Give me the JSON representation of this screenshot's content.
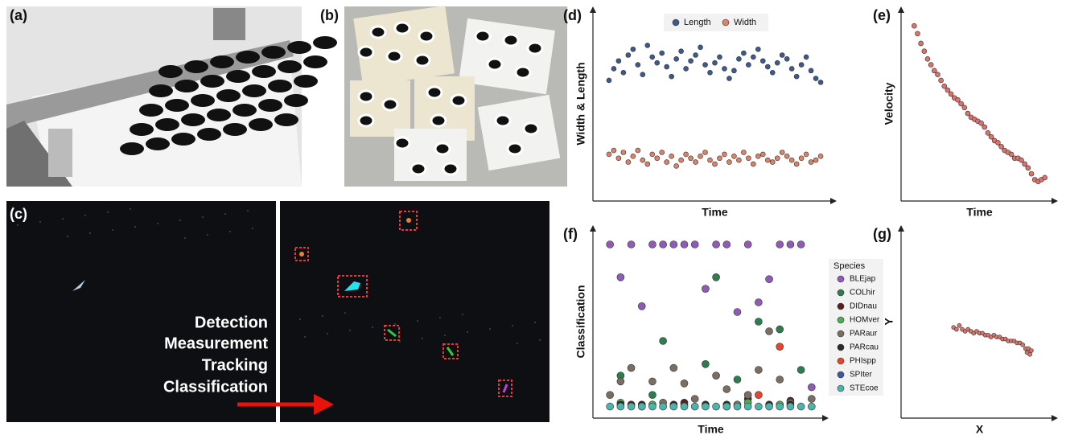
{
  "panel_labels": [
    "(a)",
    "(b)",
    "(c)",
    "(d)",
    "(e)",
    "(f)",
    "(g)"
  ],
  "steps": [
    "Detection",
    "Measurement",
    "Tracking",
    "Classification"
  ],
  "chart_data": [
    {
      "type": "scatter",
      "xlabel": "Time",
      "ylabel": "Width & Length",
      "legend": "top",
      "x": [
        0,
        1,
        2,
        3,
        4,
        5,
        6,
        7,
        8,
        9,
        10,
        11,
        12,
        13,
        14,
        15,
        16,
        17,
        18,
        19,
        20,
        21,
        22,
        23,
        24,
        25,
        26,
        27,
        28,
        29,
        30,
        31,
        32,
        33,
        34,
        35,
        36,
        37,
        38,
        39,
        40,
        41,
        42,
        43,
        44
      ],
      "xlim": [
        -2,
        46
      ],
      "ylim": [
        0,
        100
      ],
      "series": [
        {
          "name": "Length",
          "color": "#3d5a8a",
          "values": [
            62,
            68,
            72,
            66,
            75,
            78,
            70,
            65,
            80,
            74,
            71,
            76,
            69,
            64,
            73,
            77,
            68,
            72,
            75,
            79,
            70,
            66,
            71,
            74,
            68,
            63,
            67,
            73,
            76,
            70,
            74,
            78,
            72,
            69,
            66,
            71,
            75,
            73,
            68,
            64,
            70,
            74,
            67,
            63,
            61
          ]
        },
        {
          "name": "Width",
          "color": "#d9836b",
          "values": [
            24,
            26,
            22,
            25,
            20,
            23,
            26,
            21,
            19,
            24,
            22,
            25,
            20,
            23,
            18,
            21,
            24,
            22,
            20,
            23,
            25,
            21,
            19,
            22,
            24,
            20,
            23,
            21,
            25,
            22,
            19,
            23,
            24,
            21,
            20,
            22,
            25,
            23,
            21,
            19,
            22,
            24,
            20,
            21,
            23
          ]
        }
      ]
    },
    {
      "type": "scatter",
      "xlabel": "Time",
      "ylabel": "Velocity",
      "color": "#d9736b",
      "x": [
        0,
        1,
        2,
        3,
        4,
        5,
        6,
        7,
        8,
        9,
        10,
        11,
        12,
        13,
        14,
        15,
        16,
        17,
        18,
        19,
        20,
        21,
        22,
        23,
        24,
        25,
        26,
        27,
        28,
        29,
        30,
        31,
        32,
        33,
        34,
        35,
        36,
        37,
        38,
        39
      ],
      "xlim": [
        -2,
        41
      ],
      "ylim": [
        0,
        100
      ],
      "values": [
        90,
        86,
        81,
        77,
        73,
        70,
        67,
        65,
        62,
        59,
        57,
        55,
        53,
        52,
        50,
        48,
        45,
        43,
        42,
        41,
        40,
        38,
        35,
        33,
        31,
        30,
        28,
        26,
        25,
        24,
        22,
        22,
        21,
        19,
        17,
        14,
        11,
        10,
        11,
        12
      ]
    },
    {
      "type": "scatter",
      "xlabel": "Time",
      "ylabel": "Classification",
      "legend": "right",
      "legend_title": "Species",
      "x": [
        0,
        1,
        2,
        3,
        4,
        5,
        6,
        7,
        8,
        9,
        10,
        11,
        12,
        13,
        14,
        15,
        16,
        17,
        18,
        19
      ],
      "xlim": [
        -1,
        20
      ],
      "ylim": [
        0,
        1
      ],
      "series": [
        {
          "name": "BLEjap",
          "color": "#8e5bb5",
          "values": [
            0.9,
            0.73,
            0.9,
            0.58,
            0.9,
            0.9,
            0.9,
            0.9,
            0.9,
            0.67,
            0.9,
            0.9,
            0.55,
            0.9,
            0.6,
            0.72,
            0.9,
            0.9,
            0.9,
            0.16
          ]
        },
        {
          "name": "COLhir",
          "color": "#2e7d4f",
          "values": [
            null,
            0.22,
            null,
            null,
            0.12,
            0.4,
            null,
            0.07,
            null,
            0.28,
            0.73,
            null,
            0.2,
            null,
            0.5,
            null,
            0.46,
            null,
            0.25,
            null
          ]
        },
        {
          "name": "DIDnau",
          "color": "#5c1f1f",
          "values": [
            null,
            null,
            0.07,
            null,
            null,
            null,
            null,
            0.08,
            null,
            null,
            null,
            null,
            null,
            0.1,
            null,
            null,
            null,
            0.09,
            null,
            null
          ]
        },
        {
          "name": "HOMver",
          "color": "#4caf50",
          "values": [
            null,
            0.08,
            null,
            null,
            0.07,
            null,
            null,
            null,
            null,
            null,
            null,
            null,
            null,
            0.08,
            null,
            null,
            0.07,
            null,
            null,
            null
          ]
        },
        {
          "name": "PARaur",
          "color": "#7a6e63",
          "values": [
            0.12,
            0.19,
            0.26,
            null,
            0.19,
            0.08,
            0.26,
            0.18,
            0.1,
            null,
            0.22,
            0.15,
            0.07,
            0.12,
            0.25,
            0.45,
            0.2,
            0.08,
            null,
            0.1
          ]
        },
        {
          "name": "PARcau",
          "color": "#2a2a2a",
          "values": [
            null,
            0.07,
            null,
            0.07,
            null,
            null,
            0.07,
            null,
            null,
            0.07,
            null,
            0.07,
            null,
            null,
            null,
            0.07,
            null,
            0.07,
            null,
            null
          ]
        },
        {
          "name": "PHIspp",
          "color": "#e8452b",
          "values": [
            null,
            null,
            null,
            null,
            null,
            null,
            null,
            null,
            null,
            null,
            null,
            null,
            null,
            null,
            0.12,
            null,
            0.37,
            null,
            null,
            null
          ]
        },
        {
          "name": "SPIter",
          "color": "#3a5ba0",
          "values": [
            null,
            null,
            null,
            0.06,
            null,
            null,
            null,
            null,
            null,
            null,
            null,
            0.06,
            null,
            null,
            null,
            null,
            null,
            null,
            null,
            null
          ]
        },
        {
          "name": "STEcoe",
          "color": "#4fb3a9",
          "values": [
            0.06,
            0.06,
            0.06,
            0.06,
            0.06,
            0.06,
            0.06,
            0.06,
            0.06,
            0.06,
            0.06,
            0.06,
            0.06,
            0.06,
            0.06,
            0.06,
            0.06,
            0.06,
            0.06,
            0.06
          ]
        }
      ]
    },
    {
      "type": "scatter",
      "xlabel": "X",
      "ylabel": "Y",
      "color": "#d9736b",
      "x": [
        32,
        34,
        36,
        38,
        40,
        42,
        44,
        46,
        48,
        50,
        52,
        54,
        56,
        58,
        60,
        62,
        64,
        66,
        68,
        70,
        72,
        74,
        76,
        78,
        80,
        82,
        83,
        84,
        85,
        86
      ],
      "xlim": [
        0,
        100
      ],
      "ylim": [
        0,
        100
      ],
      "values": [
        47,
        46,
        48,
        46,
        45,
        46,
        45,
        44,
        45,
        44,
        44,
        43,
        43,
        42,
        43,
        42,
        42,
        41,
        41,
        40,
        40,
        40,
        39,
        39,
        38,
        36,
        34,
        36,
        33,
        35
      ]
    }
  ]
}
